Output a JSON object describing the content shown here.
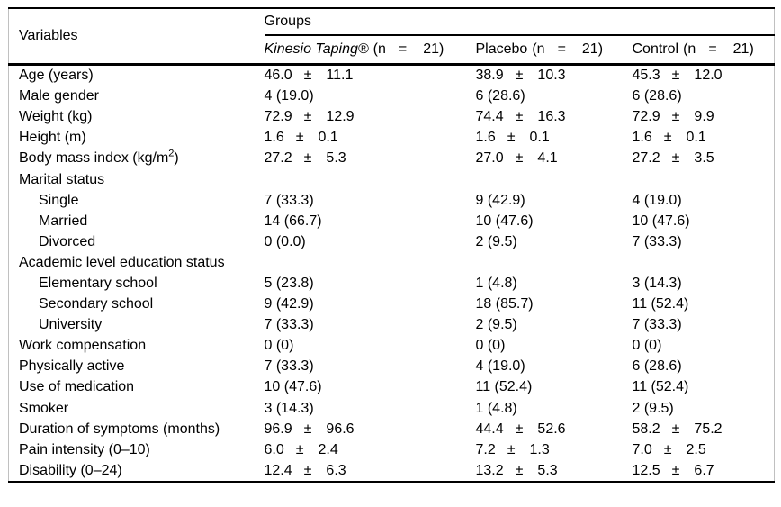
{
  "table": {
    "variables_header": "Variables",
    "groups_header": "Groups",
    "plus_minus": "±",
    "groups": [
      {
        "name": "Kinesio Taping®",
        "italic": true,
        "n_parts": [
          "(n",
          "=",
          "21)"
        ]
      },
      {
        "name": "Placebo",
        "italic": false,
        "n_parts": [
          "(n",
          "=",
          "21)"
        ]
      },
      {
        "name": "Control",
        "italic": false,
        "n_parts": [
          "(n",
          "=",
          "21)"
        ]
      }
    ],
    "rows": [
      {
        "label": "Age (years)",
        "indent": false,
        "cells": [
          {
            "mean": "46.0",
            "sd": "11.1"
          },
          {
            "mean": "38.9",
            "sd": "10.3"
          },
          {
            "mean": "45.3",
            "sd": "12.0"
          }
        ]
      },
      {
        "label": "Male gender",
        "indent": false,
        "cells": [
          {
            "text": "4 (19.0)"
          },
          {
            "text": "6 (28.6)"
          },
          {
            "text": "6 (28.6)"
          }
        ]
      },
      {
        "label": "Weight (kg)",
        "indent": false,
        "cells": [
          {
            "mean": "72.9",
            "sd": "12.9"
          },
          {
            "mean": "74.4",
            "sd": "16.3"
          },
          {
            "mean": "72.9",
            "sd": "9.9"
          }
        ]
      },
      {
        "label": "Height (m)",
        "indent": false,
        "cells": [
          {
            "mean": "1.6",
            "sd": "0.1"
          },
          {
            "mean": "1.6",
            "sd": "0.1"
          },
          {
            "mean": "1.6",
            "sd": "0.1"
          }
        ]
      },
      {
        "label": "Body mass index (kg/m",
        "sup": "2",
        "tail": ")",
        "indent": false,
        "cells": [
          {
            "mean": "27.2",
            "sd": "5.3"
          },
          {
            "mean": "27.0",
            "sd": "4.1"
          },
          {
            "mean": "27.2",
            "sd": "3.5"
          }
        ]
      },
      {
        "label": "Marital status",
        "indent": false,
        "cells": [
          {},
          {},
          {}
        ]
      },
      {
        "label": "Single",
        "indent": true,
        "cells": [
          {
            "text": "7 (33.3)"
          },
          {
            "text": "9 (42.9)"
          },
          {
            "text": "4 (19.0)"
          }
        ]
      },
      {
        "label": "Married",
        "indent": true,
        "cells": [
          {
            "text": "14 (66.7)"
          },
          {
            "text": "10 (47.6)"
          },
          {
            "text": "10 (47.6)"
          }
        ]
      },
      {
        "label": "Divorced",
        "indent": true,
        "cells": [
          {
            "text": "0 (0.0)"
          },
          {
            "text": "2 (9.5)"
          },
          {
            "text": "7 (33.3)"
          }
        ]
      },
      {
        "label": "Academic level education status",
        "indent": false,
        "cells": [
          {},
          {},
          {}
        ]
      },
      {
        "label": "Elementary school",
        "indent": true,
        "cells": [
          {
            "text": "5 (23.8)"
          },
          {
            "text": "1 (4.8)"
          },
          {
            "text": "3 (14.3)"
          }
        ]
      },
      {
        "label": "Secondary school",
        "indent": true,
        "cells": [
          {
            "text": "9 (42.9)"
          },
          {
            "text": "18 (85.7)"
          },
          {
            "text": "11 (52.4)"
          }
        ]
      },
      {
        "label": "University",
        "indent": true,
        "cells": [
          {
            "text": "7 (33.3)"
          },
          {
            "text": "2 (9.5)"
          },
          {
            "text": "7 (33.3)"
          }
        ]
      },
      {
        "label": "Work compensation",
        "indent": false,
        "cells": [
          {
            "text": "0 (0)"
          },
          {
            "text": "0 (0)"
          },
          {
            "text": "0 (0)"
          }
        ]
      },
      {
        "label": "Physically active",
        "indent": false,
        "cells": [
          {
            "text": "7 (33.3)"
          },
          {
            "text": "4 (19.0)"
          },
          {
            "text": "6 (28.6)"
          }
        ]
      },
      {
        "label": "Use of medication",
        "indent": false,
        "cells": [
          {
            "text": "10 (47.6)"
          },
          {
            "text": "11 (52.4)"
          },
          {
            "text": "11 (52.4)"
          }
        ]
      },
      {
        "label": "Smoker",
        "indent": false,
        "cells": [
          {
            "text": "3 (14.3)"
          },
          {
            "text": "1 (4.8)"
          },
          {
            "text": "2 (9.5)"
          }
        ]
      },
      {
        "label": "Duration of symptoms (months)",
        "indent": false,
        "cells": [
          {
            "mean": "96.9",
            "sd": "96.6"
          },
          {
            "mean": "44.4",
            "sd": "52.6"
          },
          {
            "mean": "58.2",
            "sd": "75.2"
          }
        ]
      },
      {
        "label": "Pain intensity (0–10)",
        "indent": false,
        "cells": [
          {
            "mean": "6.0",
            "sd": "2.4"
          },
          {
            "mean": "7.2",
            "sd": "1.3"
          },
          {
            "mean": "7.0",
            "sd": "2.5"
          }
        ]
      },
      {
        "label": "Disability (0–24)",
        "indent": false,
        "cells": [
          {
            "mean": "12.4",
            "sd": "6.3"
          },
          {
            "mean": "13.2",
            "sd": "5.3"
          },
          {
            "mean": "12.5",
            "sd": "6.7"
          }
        ]
      }
    ]
  }
}
